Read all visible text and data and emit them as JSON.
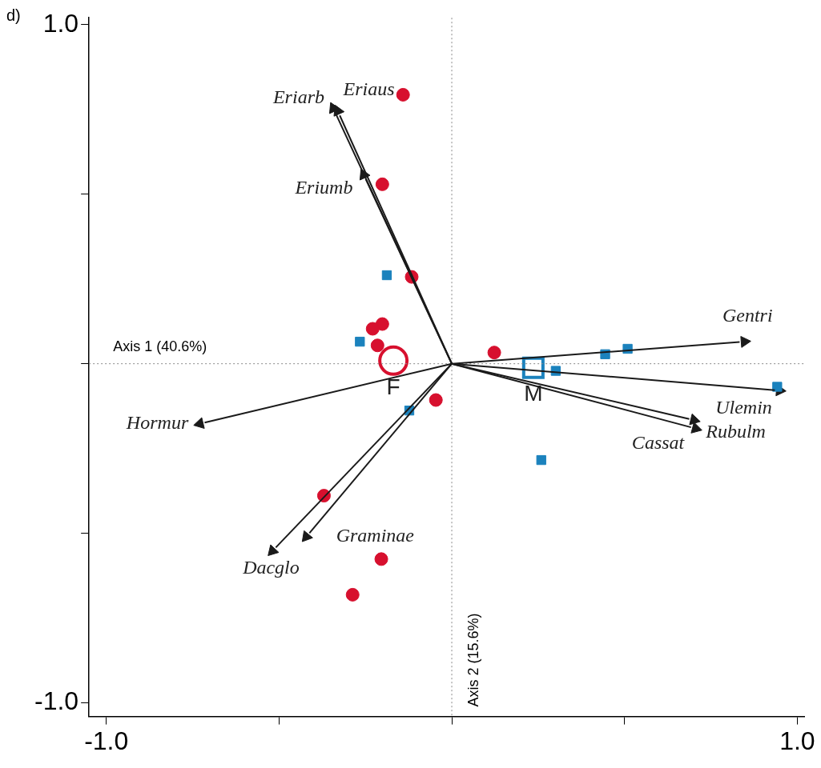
{
  "chart_data": {
    "type": "scatter",
    "xlim": [
      -1.05,
      1.02
    ],
    "ylim": [
      -1.04,
      1.02
    ],
    "xticks": [
      {
        "value": -1,
        "label": "-1.0"
      },
      {
        "value": -0.5,
        "label": null
      },
      {
        "value": 0,
        "label": null
      },
      {
        "value": 0.5,
        "label": null
      },
      {
        "value": 1,
        "label": "1.0"
      }
    ],
    "yticks": [
      {
        "value": -1,
        "label": "-1.0"
      },
      {
        "value": -0.5,
        "label": null
      },
      {
        "value": 0,
        "label": null
      },
      {
        "value": 0.5,
        "label": null
      },
      {
        "value": 1,
        "label": "1.0"
      }
    ],
    "grid": false,
    "series": [
      {
        "marker": "circle",
        "color": "#d7102e",
        "x": [
          -0.141,
          -0.201,
          -0.116,
          -0.201,
          -0.229,
          -0.215,
          0.123,
          -0.046,
          -0.37,
          -0.204,
          -0.287
        ],
        "values": [
          0.793,
          0.529,
          0.256,
          0.117,
          0.103,
          0.054,
          0.033,
          -0.107,
          -0.389,
          -0.576,
          -0.681
        ]
      },
      {
        "marker": "square",
        "color": "#1b82bd",
        "x": [
          -0.188,
          -0.266,
          -0.123,
          0.301,
          0.444,
          0.509,
          0.942,
          0.259
        ],
        "values": [
          0.261,
          0.065,
          -0.138,
          -0.021,
          0.028,
          0.044,
          -0.068,
          -0.284
        ]
      },
      {
        "marker": "circle",
        "name": "F",
        "color": "#d7102e",
        "x": [
          -0.169
        ],
        "values": [
          0.009
        ]
      },
      {
        "marker": "square",
        "name": "M",
        "color": "#1b82bd",
        "x": [
          0.236
        ],
        "values": [
          -0.012
        ]
      },
      {
        "marker": "triangle",
        "color": "#1a1a1a",
        "x": [
          -0.343,
          -0.33,
          -0.255,
          0.847,
          0.949,
          0.706,
          0.701,
          -0.729,
          -0.421,
          -0.519
        ],
        "values": [
          0.753,
          0.745,
          0.557,
          0.065,
          -0.079,
          -0.191,
          -0.166,
          -0.177,
          -0.51,
          -0.552
        ]
      }
    ],
    "ref_lines": [
      {
        "axis": "y",
        "value": 0,
        "label": "Axis 1 (40.6%)",
        "color": "#888888",
        "line_style": "dotted"
      },
      {
        "axis": "x",
        "value": 0,
        "label": "Axis 2 (15.6%)",
        "color": "#888888",
        "line_style": "dotted"
      }
    ],
    "annotations": [
      "d)",
      {
        "text": "Eriarb",
        "x": -0.343,
        "y": 0.753
      },
      {
        "text": "Eriaus",
        "x": -0.33,
        "y": 0.745
      },
      {
        "text": "Eriumb",
        "x": -0.255,
        "y": 0.557
      },
      {
        "text": "Gentri",
        "x": 0.847,
        "y": 0.065
      },
      {
        "text": "Ulemin",
        "x": 0.949,
        "y": -0.079
      },
      {
        "text": "Rubulm",
        "x": 0.706,
        "y": -0.191
      },
      {
        "text": "Cassat",
        "x": 0.701,
        "y": -0.166
      },
      {
        "text": "Hormur",
        "x": -0.729,
        "y": -0.177
      },
      {
        "text": "Graminae",
        "x": -0.421,
        "y": -0.51
      },
      {
        "text": "Dacglo",
        "x": -0.519,
        "y": -0.552
      }
    ]
  }
}
